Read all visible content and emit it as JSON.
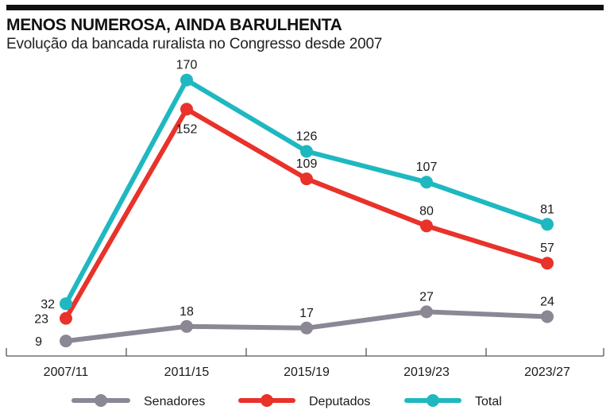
{
  "header": {
    "title": "MENOS NUMEROSA, AINDA BARULHENTA",
    "subtitle": "Evolução da bancada ruralista no Congresso desde 2007"
  },
  "colors": {
    "Senadores": "#8b8794",
    "Deputados": "#e8322a",
    "Total": "#1fb8c1",
    "axis": "#555555"
  },
  "chart_data": {
    "type": "line",
    "title": "MENOS NUMEROSA, AINDA BARULHENTA",
    "subtitle": "Evolução da bancada ruralista no Congresso desde 2007",
    "categories": [
      "2007/11",
      "2011/15",
      "2015/19",
      "2019/23",
      "2023/27"
    ],
    "series": [
      {
        "name": "Senadores",
        "values": [
          9,
          18,
          17,
          27,
          24
        ]
      },
      {
        "name": "Deputados",
        "values": [
          23,
          152,
          109,
          80,
          57
        ]
      },
      {
        "name": "Total",
        "values": [
          32,
          170,
          126,
          107,
          81
        ]
      }
    ],
    "ylim": [
      0,
      180
    ],
    "grid": false,
    "legend_position": "bottom",
    "legend": [
      "Senadores",
      "Deputados",
      "Total"
    ],
    "xlabel": "",
    "ylabel": ""
  }
}
